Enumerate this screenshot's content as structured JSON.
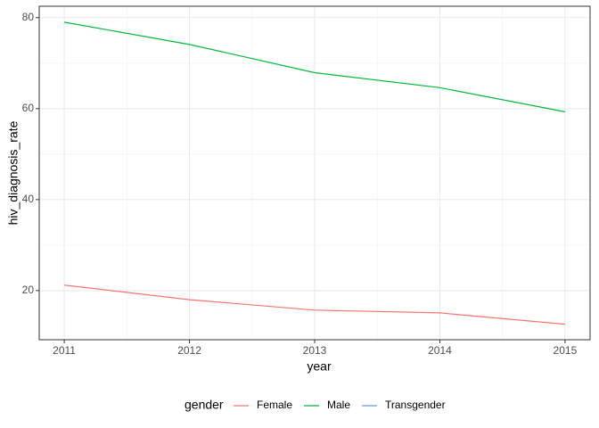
{
  "chart_data": {
    "type": "line",
    "x_label": "year",
    "y_label": "hiv_diagnosis_rate",
    "x": [
      2011,
      2012,
      2013,
      2014,
      2015
    ],
    "series": [
      {
        "name": "Female",
        "color": "#F8766D",
        "values": [
          21.2,
          18.0,
          15.7,
          15.1,
          12.6
        ]
      },
      {
        "name": "Male",
        "color": "#00BA38",
        "values": [
          79.0,
          74.1,
          67.9,
          64.6,
          59.3
        ]
      },
      {
        "name": "Transgender",
        "color": "#619CFF",
        "values": [
          null,
          null,
          null,
          null,
          null
        ]
      }
    ],
    "legend_title": "gender",
    "legend_position": "bottom",
    "xlim": [
      2010.8,
      2015.2
    ],
    "xticks": [
      2011,
      2012,
      2013,
      2014,
      2015
    ],
    "x_minor_ticks": [
      2011.5,
      2012.5,
      2013.5,
      2014.5
    ],
    "ylim": [
      9.2,
      82.5
    ],
    "yticks": [
      20,
      40,
      60,
      80
    ],
    "y_minor_ticks": [
      10,
      30,
      50,
      70
    ],
    "grid": true
  }
}
